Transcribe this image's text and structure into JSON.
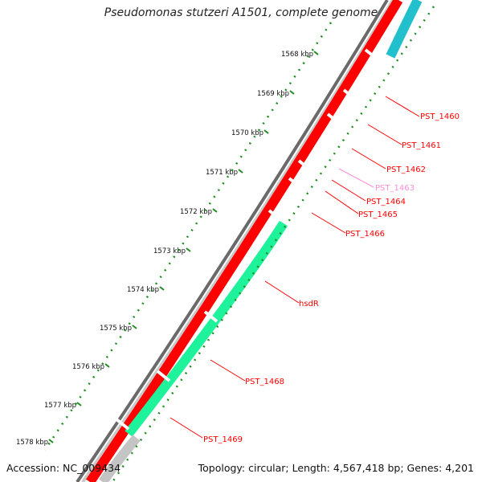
{
  "title": "Pseudomonas stutzeri A1501, complete genome",
  "footer": {
    "accession": "Accession: NC_009434",
    "summary": "Topology: circular; Length: 4,567,418 bp; Genes: 4,201"
  },
  "colors": {
    "background": "#ffffff",
    "gene_red": "#ff0000",
    "gene_red_light": "#ff6a6a",
    "gene_green": "#1ef29a",
    "gene_cyan": "#22c0cc",
    "gene_pink": "#ff8ed6",
    "gene_gray": "#c4c4c4",
    "dotted_green": "#1e8c1e",
    "backbone": "#777777"
  },
  "ticks": [
    {
      "label": "1568 kbp"
    },
    {
      "label": "1569 kbp"
    },
    {
      "label": "1570 kbp"
    },
    {
      "label": "1571 kbp"
    },
    {
      "label": "1572 kbp"
    },
    {
      "label": "1573 kbp"
    },
    {
      "label": "1574 kbp"
    },
    {
      "label": "1575 kbp"
    },
    {
      "label": "1576 kbp"
    },
    {
      "label": "1577 kbp"
    },
    {
      "label": "1578 kbp"
    }
  ],
  "genes": [
    {
      "name": "PST_1460",
      "color": "#ff0000"
    },
    {
      "name": "PST_1461",
      "color": "#ff0000"
    },
    {
      "name": "PST_1462",
      "color": "#ff0000"
    },
    {
      "name": "PST_1463",
      "color": "#ff8ed6"
    },
    {
      "name": "PST_1464",
      "color": "#ff0000"
    },
    {
      "name": "PST_1465",
      "color": "#ff0000"
    },
    {
      "name": "PST_1466",
      "color": "#ff0000"
    },
    {
      "name": "hsdR",
      "color": "#ff0000"
    },
    {
      "name": "PST_1468",
      "color": "#ff0000"
    },
    {
      "name": "PST_1469",
      "color": "#ff0000"
    }
  ]
}
